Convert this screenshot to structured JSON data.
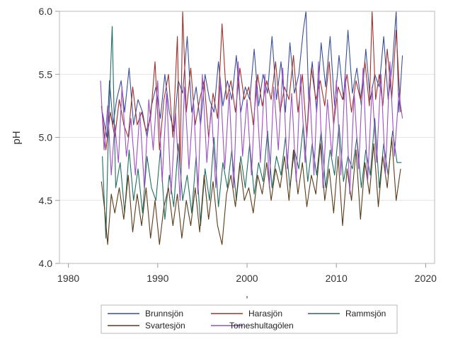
{
  "chart_data": {
    "type": "line",
    "title": "",
    "xlabel": "",
    "ylabel": "pH",
    "xlim": [
      1979,
      2021
    ],
    "ylim": [
      4.0,
      6.0
    ],
    "x_ticks": [
      1980,
      1990,
      2000,
      2010,
      2020
    ],
    "x_tick_labels": [
      "1980",
      "1990",
      "2000",
      "2010",
      "2020"
    ],
    "y_ticks": [
      4.0,
      4.5,
      5.0,
      5.5,
      6.0
    ],
    "y_tick_labels": [
      "4.0",
      "4.5",
      "5.0",
      "5.5",
      "6.0"
    ],
    "grid": "horizontal",
    "legend_position": "bottom",
    "series": [
      {
        "name": "Brunnsjön",
        "color": "#3a4f9c",
        "x": [
          1983.8,
          1984.3,
          1984.6,
          1985.0,
          1985.4,
          1985.9,
          1986.3,
          1986.8,
          1987.3,
          1987.8,
          1988.3,
          1988.8,
          1989.3,
          1989.8,
          1990.3,
          1990.8,
          1991.3,
          1991.8,
          1992.3,
          1992.8,
          1993.3,
          1993.8,
          1994.3,
          1994.8,
          1995.3,
          1995.8,
          1996.3,
          1996.8,
          1997.3,
          1997.8,
          1998.3,
          1998.8,
          1999.3,
          1999.8,
          2000.3,
          2000.8,
          2001.3,
          2001.8,
          2002.3,
          2002.8,
          2003.3,
          2003.8,
          2004.3,
          2004.8,
          2005.3,
          2005.8,
          2006.3,
          2006.6,
          2006.9,
          2007.3,
          2007.8,
          2008.3,
          2008.8,
          2009.3,
          2009.8,
          2010.3,
          2010.8,
          2011.3,
          2011.8,
          2012.3,
          2012.8,
          2013.3,
          2013.8,
          2014.3,
          2014.8,
          2015.3,
          2015.8,
          2016.3,
          2016.7,
          2017.0,
          2017.4
        ],
        "values": [
          5.2,
          5.0,
          5.45,
          5.1,
          5.3,
          5.45,
          5.2,
          5.55,
          5.1,
          5.3,
          5.2,
          5.0,
          5.25,
          5.4,
          5.15,
          5.5,
          5.2,
          5.05,
          5.45,
          5.35,
          5.8,
          5.2,
          5.4,
          5.1,
          5.5,
          5.3,
          5.2,
          5.6,
          5.25,
          5.45,
          5.3,
          5.65,
          5.2,
          5.4,
          5.3,
          5.7,
          5.25,
          5.5,
          5.35,
          5.8,
          5.3,
          5.6,
          5.2,
          5.75,
          5.35,
          5.5,
          5.85,
          6.0,
          5.3,
          5.6,
          5.2,
          5.75,
          5.4,
          5.8,
          5.25,
          5.65,
          5.3,
          5.85,
          5.35,
          5.55,
          5.25,
          5.7,
          5.3,
          5.5,
          5.4,
          5.8,
          5.3,
          5.6,
          6.0,
          5.2,
          5.65
        ]
      },
      {
        "name": "Harasjön",
        "color": "#a0302c",
        "x": [
          1983.7,
          1984.2,
          1984.7,
          1985.2,
          1985.7,
          1986.2,
          1986.7,
          1987.2,
          1987.7,
          1988.2,
          1988.7,
          1989.2,
          1989.7,
          1990.2,
          1990.7,
          1991.2,
          1991.7,
          1992.2,
          1992.5,
          1992.8,
          1993.2,
          1993.7,
          1994.2,
          1994.7,
          1995.2,
          1995.7,
          1996.2,
          1996.7,
          1997.2,
          1997.7,
          1998.2,
          1998.7,
          1999.2,
          1999.7,
          2000.2,
          2000.7,
          2001.2,
          2001.7,
          2002.2,
          2002.7,
          2003.2,
          2003.7,
          2004.2,
          2004.7,
          2005.2,
          2005.7,
          2006.2,
          2006.7,
          2007.2,
          2007.7,
          2008.2,
          2008.7,
          2009.2,
          2009.7,
          2010.2,
          2010.7,
          2011.2,
          2011.7,
          2012.2,
          2012.7,
          2013.2,
          2013.7,
          2014.0,
          2014.4,
          2014.8,
          2015.2,
          2015.7,
          2016.2,
          2016.7,
          2017.2
        ],
        "values": [
          5.25,
          4.9,
          5.2,
          5.0,
          5.3,
          5.1,
          5.0,
          5.4,
          5.1,
          5.2,
          5.05,
          5.15,
          5.6,
          4.9,
          5.3,
          5.5,
          5.0,
          5.8,
          4.75,
          6.0,
          5.2,
          5.55,
          5.1,
          5.3,
          5.45,
          5.0,
          5.35,
          5.15,
          5.9,
          5.3,
          5.45,
          5.2,
          5.55,
          5.3,
          5.4,
          5.1,
          5.5,
          5.25,
          5.45,
          5.3,
          5.6,
          5.2,
          5.4,
          5.3,
          5.65,
          5.2,
          5.5,
          5.0,
          5.55,
          5.3,
          5.45,
          5.25,
          5.6,
          5.1,
          5.4,
          5.3,
          5.5,
          5.2,
          5.45,
          5.3,
          5.6,
          5.25,
          6.0,
          5.3,
          5.5,
          5.25,
          5.7,
          5.3,
          5.85,
          5.2
        ]
      },
      {
        "name": "Rammsjön",
        "color": "#1f6e60",
        "x": [
          1983.8,
          1984.2,
          1984.5,
          1984.9,
          1985.3,
          1985.8,
          1986.3,
          1986.8,
          1987.3,
          1987.8,
          1988.3,
          1988.8,
          1989.3,
          1989.8,
          1990.3,
          1990.8,
          1991.3,
          1991.8,
          1992.3,
          1992.8,
          1993.3,
          1993.8,
          1994.3,
          1994.8,
          1995.3,
          1995.8,
          1996.3,
          1996.8,
          1997.3,
          1997.8,
          1998.3,
          1998.8,
          1999.3,
          1999.8,
          2000.3,
          2000.8,
          2001.3,
          2001.8,
          2002.3,
          2002.8,
          2003.3,
          2003.8,
          2004.3,
          2004.8,
          2005.3,
          2005.8,
          2006.3,
          2006.8,
          2007.3,
          2007.8,
          2008.3,
          2008.8,
          2009.3,
          2009.8,
          2010.3,
          2010.8,
          2011.3,
          2011.8,
          2012.3,
          2012.8,
          2013.3,
          2013.8,
          2014.3,
          2014.8,
          2015.3,
          2015.8,
          2016.3,
          2016.8,
          2017.3
        ],
        "values": [
          4.85,
          4.2,
          5.1,
          5.88,
          4.6,
          4.8,
          4.4,
          4.9,
          4.5,
          4.75,
          4.4,
          4.85,
          4.6,
          4.5,
          4.9,
          4.35,
          4.7,
          4.45,
          4.95,
          4.5,
          4.7,
          4.4,
          4.85,
          4.3,
          4.75,
          4.5,
          5.0,
          4.45,
          4.8,
          4.6,
          4.9,
          4.5,
          4.85,
          4.6,
          4.95,
          4.55,
          4.8,
          4.65,
          5.05,
          4.6,
          4.85,
          4.7,
          5.0,
          4.6,
          4.9,
          4.75,
          5.1,
          4.65,
          4.95,
          4.7,
          5.05,
          4.6,
          4.9,
          4.7,
          5.1,
          4.65,
          4.85,
          4.75,
          5.0,
          4.6,
          4.9,
          4.7,
          5.15,
          4.6,
          4.95,
          4.7,
          5.05,
          4.8,
          4.8
        ]
      },
      {
        "name": "Svartesjön",
        "color": "#5c3a17",
        "x": [
          1983.7,
          1984.1,
          1984.4,
          1984.8,
          1985.2,
          1985.7,
          1986.2,
          1986.7,
          1987.2,
          1987.7,
          1988.2,
          1988.7,
          1989.2,
          1989.7,
          1990.2,
          1990.7,
          1991.2,
          1991.7,
          1992.2,
          1992.7,
          1993.2,
          1993.7,
          1994.2,
          1994.7,
          1995.2,
          1995.7,
          1996.2,
          1996.7,
          1997.2,
          1997.7,
          1998.2,
          1998.7,
          1999.2,
          1999.7,
          2000.2,
          2000.7,
          2001.2,
          2001.7,
          2002.2,
          2002.7,
          2003.2,
          2003.7,
          2004.2,
          2004.7,
          2005.2,
          2005.7,
          2006.2,
          2006.7,
          2007.2,
          2007.7,
          2008.2,
          2008.7,
          2009.2,
          2009.7,
          2010.2,
          2010.7,
          2011.2,
          2011.7,
          2012.2,
          2012.7,
          2013.2,
          2013.7,
          2014.2,
          2014.7,
          2015.2,
          2015.7,
          2016.2,
          2016.7,
          2017.2
        ],
        "values": [
          4.65,
          4.4,
          4.15,
          4.55,
          4.4,
          4.6,
          4.35,
          4.7,
          4.25,
          4.55,
          4.3,
          4.6,
          4.2,
          4.5,
          4.15,
          4.45,
          4.6,
          4.3,
          4.55,
          4.2,
          4.5,
          4.3,
          4.6,
          4.25,
          4.7,
          4.35,
          4.65,
          4.3,
          4.15,
          4.55,
          4.7,
          4.45,
          4.8,
          4.5,
          4.6,
          4.4,
          4.7,
          4.55,
          4.8,
          4.5,
          4.75,
          4.6,
          4.85,
          4.5,
          4.9,
          4.55,
          4.8,
          4.45,
          4.7,
          4.55,
          4.95,
          4.5,
          4.75,
          4.4,
          4.85,
          4.3,
          4.75,
          4.5,
          4.9,
          4.35,
          4.8,
          4.55,
          4.95,
          4.45,
          4.85,
          4.6,
          5.0,
          4.5,
          4.75
        ]
      },
      {
        "name": "Tomeshultagölen",
        "color": "#9b4fc4",
        "x": [
          1983.6,
          1984.0,
          1984.4,
          1984.8,
          1985.2,
          1985.6,
          1986.0,
          1986.5,
          1987.0,
          1987.5,
          1988.0,
          1988.5,
          1989.0,
          1989.5,
          1990.0,
          1990.5,
          1991.0,
          1991.5,
          1992.0,
          1992.5,
          1993.0,
          1993.5,
          1994.0,
          1994.5,
          1995.0,
          1995.5,
          1996.0,
          1996.5,
          1997.0,
          1997.5,
          1998.0,
          1998.5,
          1999.0,
          1999.5,
          2000.0,
          2000.5,
          2001.0,
          2001.5,
          2002.0,
          2002.5,
          2003.0,
          2003.5,
          2004.0,
          2004.5,
          2005.0,
          2005.5,
          2006.0,
          2006.5,
          2007.0,
          2007.5,
          2008.0,
          2008.5,
          2009.0,
          2009.5,
          2010.0,
          2010.5,
          2011.0,
          2011.5,
          2012.0,
          2012.5,
          2013.0,
          2013.5,
          2014.0,
          2014.5,
          2015.0,
          2015.5,
          2016.0,
          2016.5,
          2017.0,
          2017.4
        ],
        "values": [
          5.45,
          4.9,
          5.25,
          4.7,
          5.1,
          4.8,
          5.4,
          4.85,
          5.15,
          4.7,
          5.2,
          4.6,
          5.3,
          4.9,
          5.45,
          4.65,
          5.35,
          4.55,
          5.2,
          4.5,
          5.4,
          4.75,
          5.3,
          4.55,
          5.5,
          4.8,
          5.25,
          4.6,
          5.45,
          4.75,
          5.35,
          4.6,
          5.6,
          4.85,
          5.3,
          4.7,
          5.45,
          4.8,
          5.5,
          4.6,
          5.4,
          4.9,
          5.55,
          4.75,
          5.35,
          4.65,
          5.5,
          4.8,
          5.4,
          4.7,
          5.6,
          4.6,
          5.3,
          4.85,
          5.45,
          4.7,
          5.5,
          4.55,
          5.35,
          4.75,
          5.55,
          4.65,
          5.4,
          4.8,
          5.5,
          4.7,
          5.6,
          4.85,
          5.35,
          5.15
        ]
      }
    ]
  },
  "x_axis_caption": ","
}
